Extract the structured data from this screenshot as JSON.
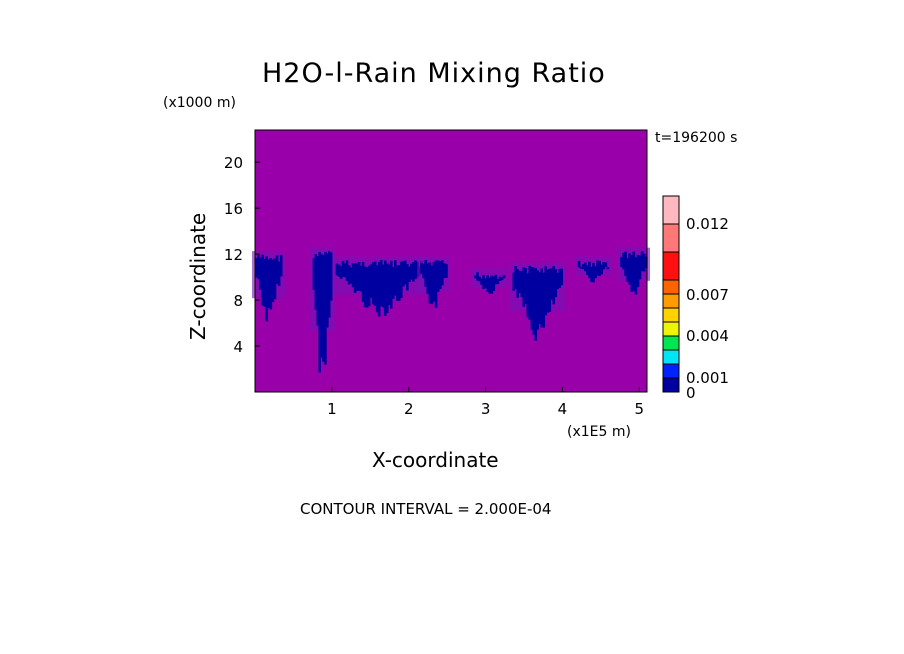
{
  "chart_data": {
    "type": "heatmap",
    "title": "H2O-l-Rain Mixing Ratio",
    "xlabel": "X-coordinate",
    "ylabel": "Z-coordinate",
    "x_unit": "(x1E5 m)",
    "y_unit": "(x1000 m)",
    "time_label": "t=196200 s",
    "contour_interval_label": "CONTOUR INTERVAL = 2.000E-04",
    "xlim": [
      0,
      5.1
    ],
    "ylim": [
      0,
      22.8
    ],
    "x_ticks": [
      "1",
      "2",
      "3",
      "4",
      "5"
    ],
    "x_tick_values": [
      1,
      2,
      3,
      4,
      5
    ],
    "y_ticks": [
      "4",
      "8",
      "12",
      "16",
      "20"
    ],
    "y_tick_values": [
      4,
      8,
      12,
      16,
      20
    ],
    "background_color": "#9900aa",
    "colorbar": {
      "labels": [
        "0",
        "0.001",
        "0.004",
        "0.007",
        "0.012"
      ],
      "colors": [
        "#0000a0",
        "#0022ff",
        "#00e5f5",
        "#00e650",
        "#eef500",
        "#ffd200",
        "#ff9c00",
        "#ff6400",
        "#ff1010",
        "#ff7878",
        "#ffb8c0"
      ]
    },
    "rain_regions": [
      {
        "x": [
          0,
          0.35
        ],
        "z": [
          5.5,
          12
        ]
      },
      {
        "x": [
          0.75,
          1.0
        ],
        "z": [
          0,
          12.3
        ]
      },
      {
        "x": [
          1.05,
          2.2
        ],
        "z": [
          6.5,
          11.5
        ]
      },
      {
        "x": [
          2.15,
          2.5
        ],
        "z": [
          7,
          11.5
        ]
      },
      {
        "x": [
          2.85,
          3.25
        ],
        "z": [
          8.5,
          10.5
        ]
      },
      {
        "x": [
          3.35,
          4.0
        ],
        "z": [
          4.2,
          11
        ]
      },
      {
        "x": [
          4.2,
          4.6
        ],
        "z": [
          9.5,
          11.5
        ]
      },
      {
        "x": [
          4.75,
          5.1
        ],
        "z": [
          8,
          12.3
        ]
      }
    ]
  }
}
